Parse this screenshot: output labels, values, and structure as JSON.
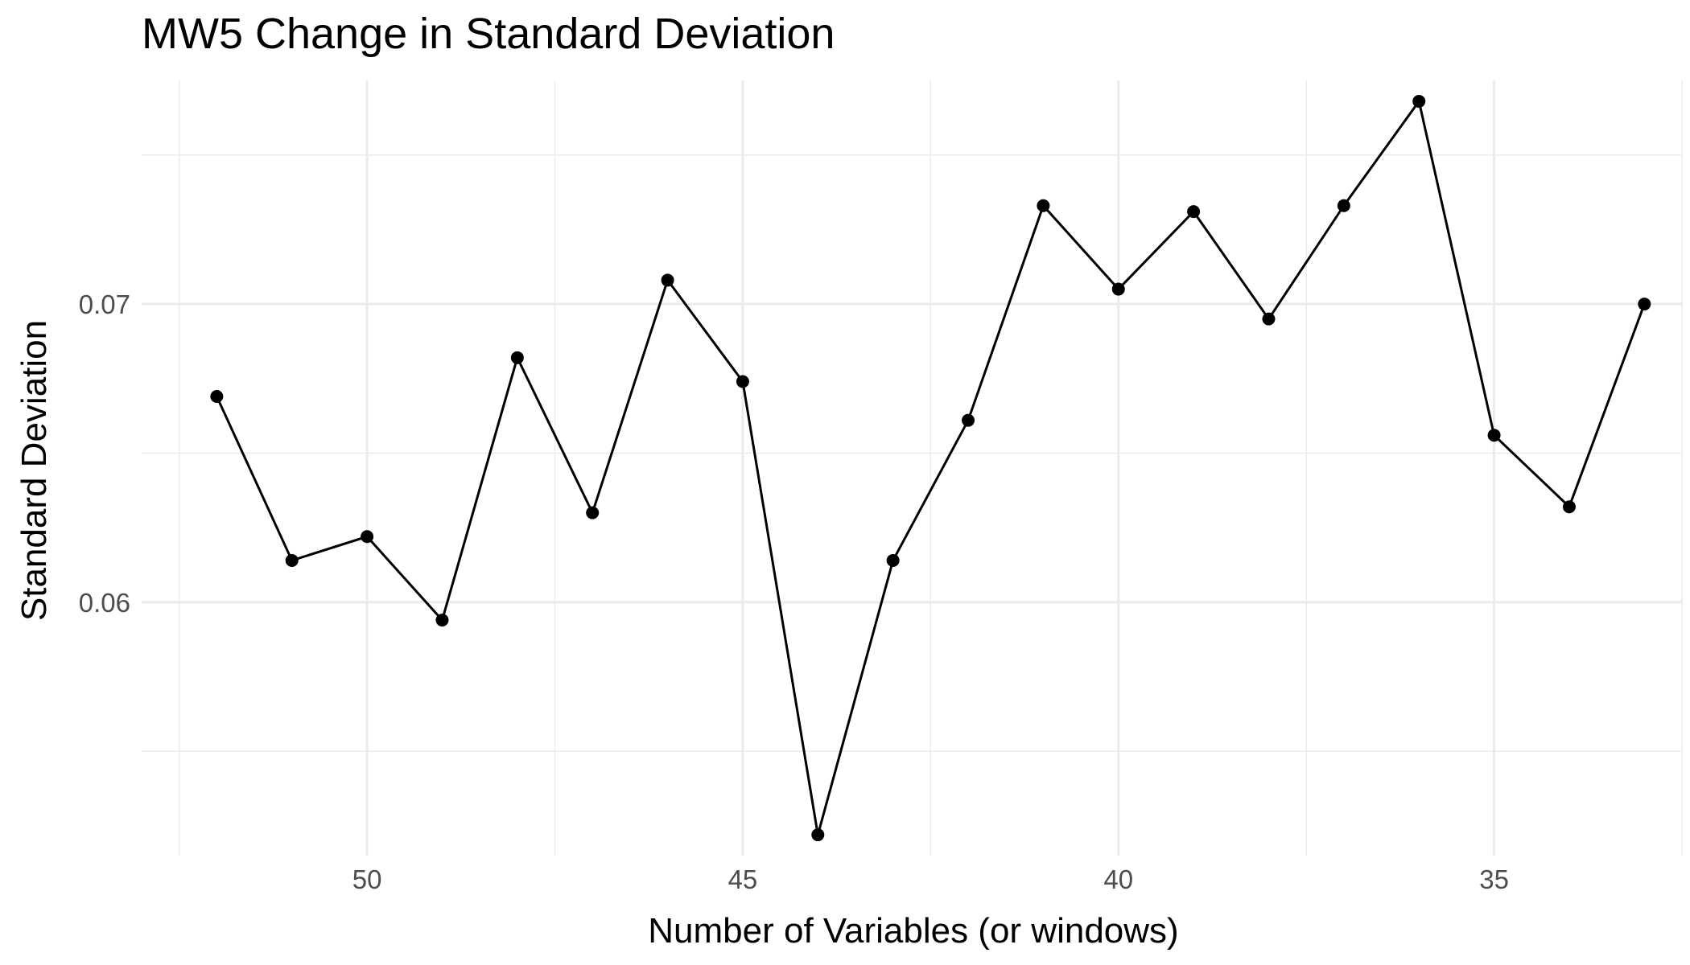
{
  "chart_data": {
    "type": "line",
    "title": "MW5 Change in Standard Deviation",
    "xlabel": "Number of Variables (or windows)",
    "ylabel": "Standard Deviation",
    "x_reversed": true,
    "xlim": [
      53.0,
      32.5
    ],
    "ylim": [
      0.0515,
      0.0775
    ],
    "x_ticks": [
      50,
      45,
      40,
      35
    ],
    "x_tick_labels": [
      "50",
      "45",
      "40",
      "35"
    ],
    "x_minor_ticks": [
      52.5,
      47.5,
      42.5,
      37.5,
      32.5
    ],
    "y_ticks": [
      0.06,
      0.07
    ],
    "y_tick_labels": [
      "0.06",
      "0.07"
    ],
    "y_minor_ticks": [
      0.055,
      0.065,
      0.075
    ],
    "grid": true,
    "legend": "none",
    "series": [
      {
        "x": [
          52,
          51,
          50,
          49,
          48,
          47,
          46,
          45,
          44,
          43,
          42,
          41,
          40,
          39,
          38,
          37,
          36,
          35,
          34,
          33
        ],
        "values": [
          0.0669,
          0.0614,
          0.0622,
          0.0594,
          0.0682,
          0.063,
          0.0708,
          0.0674,
          0.0522,
          0.0614,
          0.0661,
          0.0733,
          0.0705,
          0.0731,
          0.0695,
          0.0733,
          0.0768,
          0.0656,
          0.0632,
          0.07
        ],
        "color": "#000000"
      }
    ]
  }
}
